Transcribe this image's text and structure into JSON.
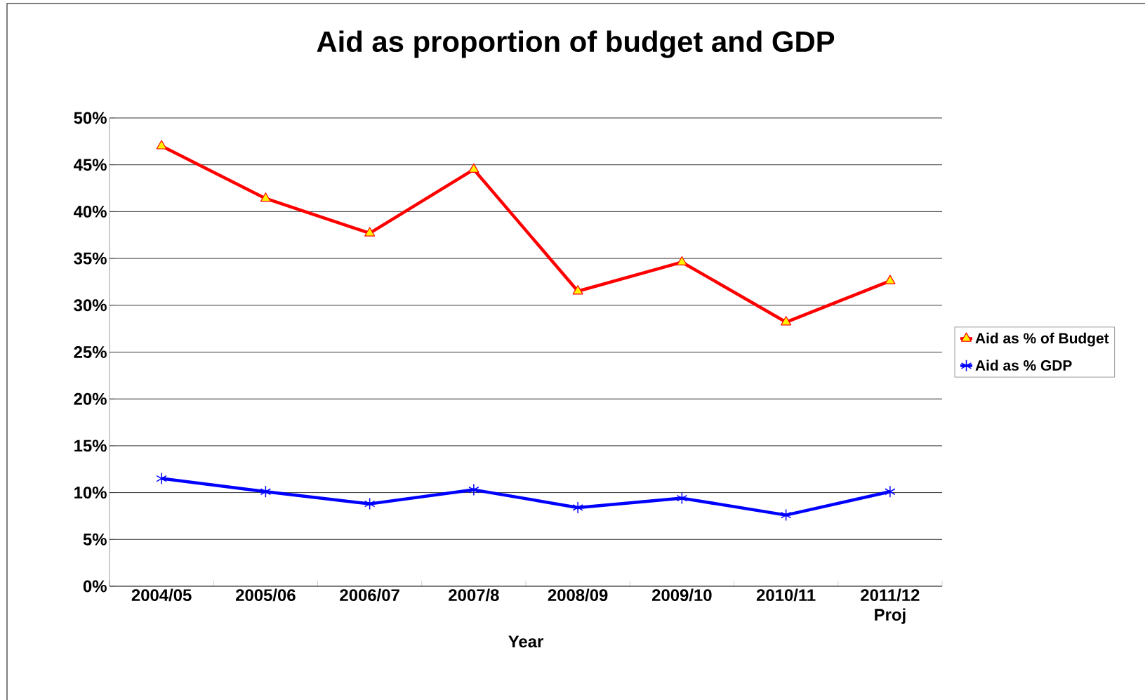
{
  "chart_data": {
    "type": "line",
    "title": "Aid as proportion of budget and GDP",
    "xlabel": "Year",
    "categories": [
      "2004/05",
      "2005/06",
      "2006/07",
      "2007/8",
      "2008/09",
      "2009/10",
      "2010/11",
      "2011/12 Proj"
    ],
    "series": [
      {
        "name": "Aid as % of Budget",
        "color": "#ff0000",
        "marker": "triangle",
        "values": [
          47.0,
          41.4,
          37.7,
          44.5,
          31.5,
          34.6,
          28.2,
          32.6
        ]
      },
      {
        "name": "Aid as % GDP",
        "color": "#0000ff",
        "marker": "cross",
        "values": [
          11.5,
          10.1,
          8.8,
          10.3,
          8.4,
          9.4,
          7.6,
          10.1
        ]
      }
    ],
    "ylim": [
      0,
      50
    ],
    "yticks": [
      {
        "value": 0,
        "label": "0%"
      },
      {
        "value": 5,
        "label": "5%"
      },
      {
        "value": 10,
        "label": "10%"
      },
      {
        "value": 15,
        "label": "15%"
      },
      {
        "value": 20,
        "label": "20%"
      },
      {
        "value": 25,
        "label": "25%"
      },
      {
        "value": 30,
        "label": "30%"
      },
      {
        "value": 35,
        "label": "35%"
      },
      {
        "value": 40,
        "label": "40%"
      },
      {
        "value": 45,
        "label": "45%"
      },
      {
        "value": 50,
        "label": "50%"
      }
    ],
    "grid": "y",
    "legend": "right"
  }
}
